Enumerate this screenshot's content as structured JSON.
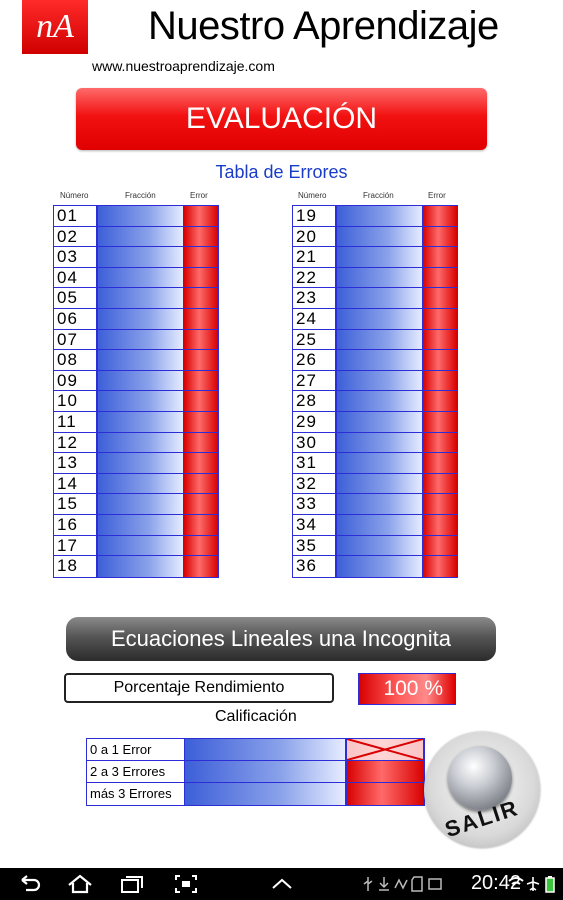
{
  "header": {
    "logo_text": "nA",
    "title": "Nuestro Aprendizaje",
    "url": "www.nuestroaprendizaje.com"
  },
  "banner": {
    "label": "EVALUACIÓN"
  },
  "error_table": {
    "title": "Tabla de Errores",
    "columns": {
      "number": "Número",
      "fraction": "Fracción",
      "error": "Error"
    },
    "left_rows": [
      "01",
      "02",
      "03",
      "04",
      "05",
      "06",
      "07",
      "08",
      "09",
      "10",
      "11",
      "12",
      "13",
      "14",
      "15",
      "16",
      "17",
      "18"
    ],
    "right_rows": [
      "19",
      "20",
      "21",
      "22",
      "23",
      "24",
      "25",
      "26",
      "27",
      "28",
      "29",
      "30",
      "31",
      "32",
      "33",
      "34",
      "35",
      "36"
    ]
  },
  "subject": {
    "label": "Ecuaciones Lineales una Incognita"
  },
  "performance": {
    "label": "Porcentaje Rendimiento",
    "value": "100 %"
  },
  "grading": {
    "title": "Calificación",
    "rows": [
      {
        "label": "0  a 1 Error",
        "marked": true
      },
      {
        "label": "2 a 3 Errores",
        "marked": false
      },
      {
        "label": "más 3 Errores",
        "marked": false
      }
    ]
  },
  "exit_button": {
    "label": "SALIR"
  },
  "status_bar": {
    "time": "20:42",
    "nav_icons": [
      "back-icon",
      "home-icon",
      "recent-apps-icon",
      "screenshot-icon",
      "up-chevron-icon"
    ],
    "tray_icons": [
      "usb-icon",
      "download-icon",
      "signal-icon",
      "sd-card-icon",
      "wifi-icon",
      "airplane-icon",
      "battery-icon"
    ]
  },
  "colors": {
    "brand_red": "#e00000",
    "table_blue": "#2d2dd8",
    "title_blue": "#1a3cc8",
    "subject_gray": "#555555"
  }
}
